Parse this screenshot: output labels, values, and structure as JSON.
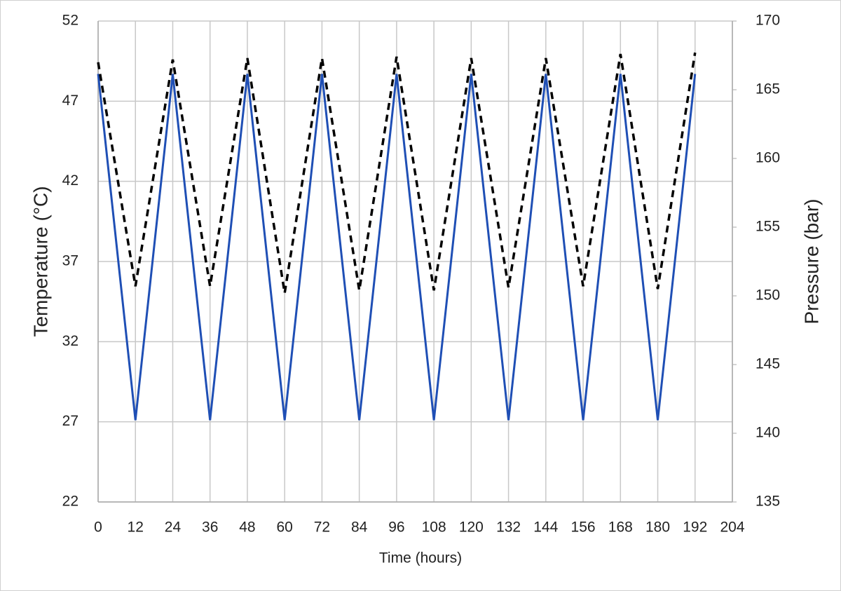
{
  "chart_data": {
    "type": "line",
    "x_label": "Time (hours)",
    "y_label": "Temperature (°C)",
    "y2_label": "Pressure (bar)",
    "x": [
      0,
      12,
      24,
      36,
      48,
      60,
      72,
      84,
      96,
      108,
      120,
      132,
      144,
      156,
      168,
      180,
      192
    ],
    "series": [
      {
        "color": "#1f4fb5",
        "style": "solid",
        "axis": "y",
        "values": [
          48.7,
          27.1,
          48.7,
          27.1,
          48.7,
          27.1,
          48.7,
          27.1,
          48.7,
          27.1,
          48.7,
          27.1,
          48.7,
          27.1,
          48.7,
          27.1,
          48.7
        ]
      },
      {
        "color": "#000000",
        "style": "dashed",
        "axis": "y2",
        "values": [
          167.0,
          150.7,
          167.2,
          150.7,
          167.3,
          150.2,
          167.3,
          150.4,
          167.4,
          150.4,
          167.3,
          150.6,
          167.3,
          150.7,
          167.6,
          150.5,
          167.7
        ]
      }
    ],
    "xlim": [
      0,
      204
    ],
    "xticks": [
      0,
      12,
      24,
      36,
      48,
      60,
      72,
      84,
      96,
      108,
      120,
      132,
      144,
      156,
      168,
      180,
      192,
      204
    ],
    "ylim": [
      22,
      52
    ],
    "yticks": [
      22,
      27,
      32,
      37,
      42,
      47,
      52
    ],
    "y2lim": [
      135,
      170
    ],
    "y2ticks": [
      135,
      140,
      145,
      150,
      155,
      160,
      165,
      170
    ],
    "grid": true
  }
}
